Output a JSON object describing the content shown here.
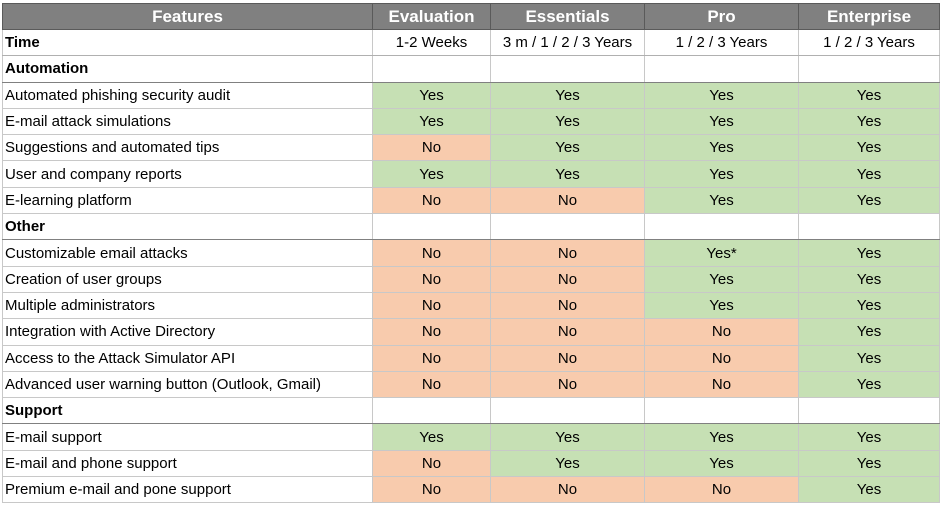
{
  "header": {
    "features": "Features",
    "plans": [
      "Evaluation",
      "Essentials",
      "Pro",
      "Enterprise"
    ]
  },
  "time": {
    "label": "Time",
    "values": [
      "1-2 Weeks",
      "3 m / 1 / 2 / 3 Years",
      "1 / 2 / 3 Years",
      "1 / 2 / 3 Years"
    ]
  },
  "sections": [
    {
      "title": "Automation",
      "rows": [
        {
          "label": "Automated phishing security audit",
          "values": [
            "Yes",
            "Yes",
            "Yes",
            "Yes"
          ]
        },
        {
          "label": "E-mail attack simulations",
          "values": [
            "Yes",
            "Yes",
            "Yes",
            "Yes"
          ]
        },
        {
          "label": "Suggestions and automated tips",
          "values": [
            "No",
            "Yes",
            "Yes",
            "Yes"
          ]
        },
        {
          "label": "User and company reports",
          "values": [
            "Yes",
            "Yes",
            "Yes",
            "Yes"
          ]
        },
        {
          "label": "E-learning platform",
          "values": [
            "No",
            "No",
            "Yes",
            "Yes"
          ]
        }
      ]
    },
    {
      "title": "Other",
      "rows": [
        {
          "label": "Customizable email attacks",
          "values": [
            "No",
            "No",
            "Yes*",
            "Yes"
          ]
        },
        {
          "label": "Creation of user groups",
          "values": [
            "No",
            "No",
            "Yes",
            "Yes"
          ]
        },
        {
          "label": "Multiple administrators",
          "values": [
            "No",
            "No",
            "Yes",
            "Yes"
          ]
        },
        {
          "label": "Integration with Active Directory",
          "values": [
            "No",
            "No",
            "No",
            "Yes"
          ]
        },
        {
          "label": "Access to the Attack Simulator API",
          "values": [
            "No",
            "No",
            "No",
            "Yes"
          ]
        },
        {
          "label": "Advanced user warning button (Outlook, Gmail)",
          "values": [
            "No",
            "No",
            "No",
            "Yes"
          ]
        }
      ]
    },
    {
      "title": "Support",
      "rows": [
        {
          "label": "E-mail support",
          "values": [
            "Yes",
            "Yes",
            "Yes",
            "Yes"
          ]
        },
        {
          "label": "E-mail and phone support",
          "values": [
            "No",
            "Yes",
            "Yes",
            "Yes"
          ]
        },
        {
          "label": "Premium e-mail and pone support",
          "values": [
            "No",
            "No",
            "No",
            "Yes"
          ]
        }
      ]
    }
  ],
  "colors": {
    "header_bg": "#808080",
    "yes_bg": "#c6e0b4",
    "no_bg": "#f8cbad"
  }
}
